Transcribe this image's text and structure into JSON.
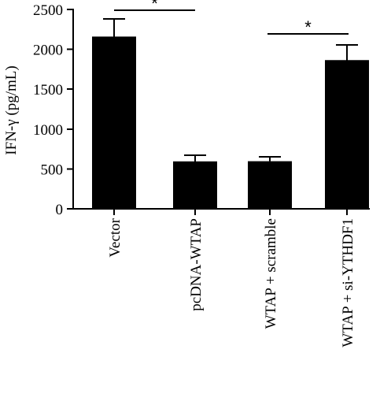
{
  "chart_data": {
    "type": "bar",
    "ylabel": "IFN-γ (pg/mL)",
    "xlabel": "",
    "title": "",
    "categories": [
      "Vector",
      "pcDNA-WTAP",
      "WTAP + scramble",
      "WTAP + si-YTHDF1"
    ],
    "values": [
      2160,
      595,
      597,
      1865
    ],
    "errors": [
      220,
      75,
      55,
      190
    ],
    "ylim": [
      0,
      2500
    ],
    "yticks": [
      0,
      500,
      1000,
      1500,
      2000,
      2500
    ],
    "grid": false,
    "legend": "none",
    "bar_color": "#000000",
    "significance": [
      {
        "from": 0,
        "to": 1,
        "label": "*"
      },
      {
        "from": 2,
        "to": 3,
        "label": "*"
      }
    ]
  }
}
